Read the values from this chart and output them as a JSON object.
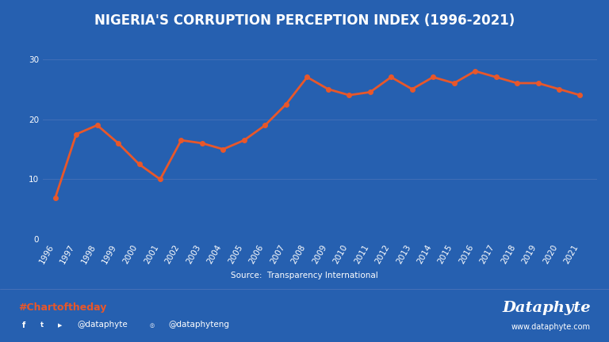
{
  "title": "NIGERIA'S CORRUPTION PERCEPTION INDEX (1996-2021)",
  "years": [
    1996,
    1997,
    1998,
    1999,
    2000,
    2001,
    2002,
    2003,
    2004,
    2005,
    2006,
    2007,
    2008,
    2009,
    2010,
    2011,
    2012,
    2013,
    2014,
    2015,
    2016,
    2017,
    2018,
    2019,
    2020,
    2021
  ],
  "values": [
    6.9,
    17.5,
    19.0,
    16.0,
    12.5,
    10.0,
    16.5,
    16.0,
    15.0,
    16.5,
    19.0,
    22.5,
    27.0,
    25.0,
    24.0,
    24.5,
    27.0,
    25.0,
    27.0,
    26.0,
    28.0,
    27.0,
    26.0,
    26.0,
    25.0,
    24.0
  ],
  "line_color": "#E8572A",
  "marker_color": "#E8572A",
  "background_color": "#2660B0",
  "text_color": "#FFFFFF",
  "grid_color": "#5577BB",
  "source_text": "Source:  Transparency International",
  "hashtag_text": "#Chartoftheday",
  "hashtag_color": "#E8572A",
  "brand_text": "Dataphyte",
  "brand_url": "www.dataphyte.com",
  "social_handle1": "@dataphyte",
  "social_handle2": "@dataphyteng",
  "ylim": [
    0,
    33
  ],
  "yticks": [
    0,
    10,
    20,
    30
  ],
  "title_fontsize": 12,
  "tick_fontsize": 7.5
}
